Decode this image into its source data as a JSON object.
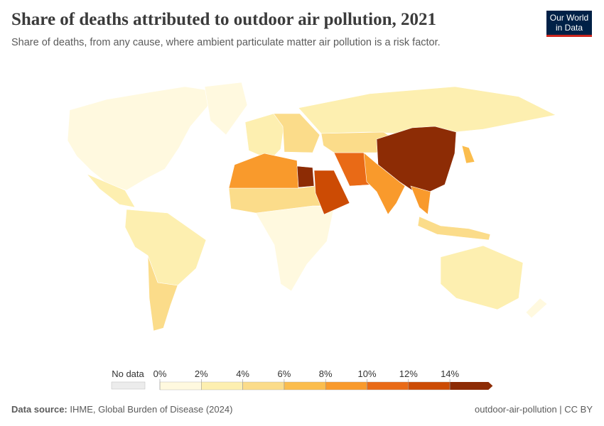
{
  "header": {
    "title": "Share of deaths attributed to outdoor air pollution, 2021",
    "subtitle": "Share of deaths, from any cause, where ambient particulate matter air pollution is a risk factor.",
    "logo_line1": "Our World",
    "logo_line2": "in Data"
  },
  "legend": {
    "no_data_label": "No data",
    "no_data_color": "#ececec",
    "bins": [
      {
        "label": "0%",
        "color": "#fff9df"
      },
      {
        "label": "2%",
        "color": "#fdefb0"
      },
      {
        "label": "4%",
        "color": "#fbdc8a"
      },
      {
        "label": "6%",
        "color": "#fbbd4d"
      },
      {
        "label": "8%",
        "color": "#f99a2c"
      },
      {
        "label": "10%",
        "color": "#e96a16"
      },
      {
        "label": "12%",
        "color": "#cc4b04"
      },
      {
        "label": "14%",
        "color": "#8d2c05"
      }
    ]
  },
  "regions": [
    {
      "name": "North America",
      "bin": 0
    },
    {
      "name": "Greenland",
      "bin": 0
    },
    {
      "name": "Mexico and Central America",
      "bin": 1
    },
    {
      "name": "South America",
      "bin": 1
    },
    {
      "name": "Argentina",
      "bin": 2
    },
    {
      "name": "Europe",
      "bin": 1
    },
    {
      "name": "Eastern Europe",
      "bin": 2
    },
    {
      "name": "Russia",
      "bin": 1
    },
    {
      "name": "Central Africa",
      "bin": 0
    },
    {
      "name": "Sahel",
      "bin": 2
    },
    {
      "name": "North Africa",
      "bin": 4
    },
    {
      "name": "Egypt",
      "bin": 7
    },
    {
      "name": "Arabian Peninsula",
      "bin": 6
    },
    {
      "name": "Iran",
      "bin": 5
    },
    {
      "name": "Central Asia",
      "bin": 2
    },
    {
      "name": "China",
      "bin": 7
    },
    {
      "name": "India",
      "bin": 4
    },
    {
      "name": "Southeast Asia",
      "bin": 4
    },
    {
      "name": "Indonesia",
      "bin": 2
    },
    {
      "name": "Japan",
      "bin": 3
    },
    {
      "name": "Australia",
      "bin": 1
    },
    {
      "name": "New Zealand",
      "bin": 0
    }
  ],
  "footer": {
    "source_label": "Data source:",
    "source": "IHME, Global Burden of Disease (2024)",
    "slug": "outdoor-air-pollution | CC BY"
  }
}
